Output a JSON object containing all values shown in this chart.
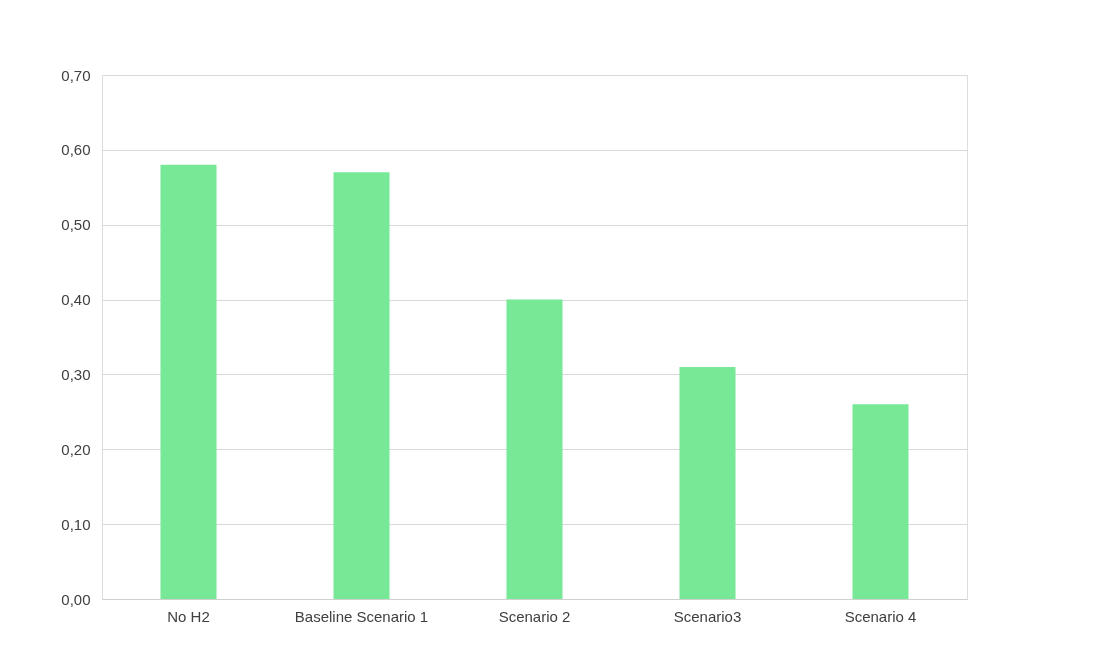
{
  "chart_data": {
    "type": "bar",
    "categories": [
      "No H2",
      "Baseline Scenario 1",
      "Scenario 2",
      "Scenario3",
      "Scenario 4"
    ],
    "values": [
      0.58,
      0.57,
      0.4,
      0.31,
      0.26
    ],
    "color": "#76e896",
    "ylim": [
      0,
      0.7
    ],
    "yticks": [
      {
        "value": 0,
        "label": "0,00"
      },
      {
        "value": 0.1,
        "label": "0,10"
      },
      {
        "value": 0.2,
        "label": "0,20"
      },
      {
        "value": 0.3,
        "label": "0,30"
      },
      {
        "value": 0.4,
        "label": "0,40"
      },
      {
        "value": 0.5,
        "label": "0,50"
      },
      {
        "value": 0.6,
        "label": "0,60"
      },
      {
        "value": 0.7,
        "label": "0,70"
      }
    ],
    "grid": "y"
  }
}
